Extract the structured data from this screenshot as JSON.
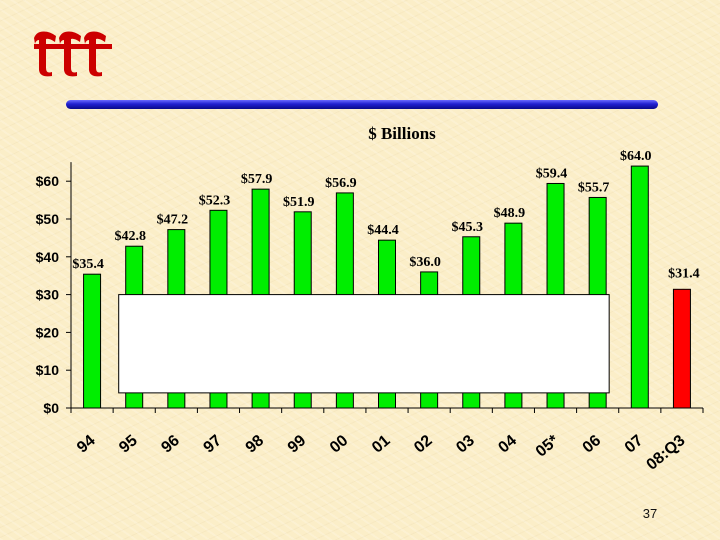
{
  "slide": {
    "page_number": "37"
  },
  "colors": {
    "bar": "#00ee00",
    "highlight_bar": "#ff0000",
    "rule": "#1a1ab8",
    "logo": "#cc0000",
    "overlay_box": "#ffffff"
  },
  "logo": {
    "icon": "triple-t-logo-icon"
  },
  "chart_data": {
    "type": "bar",
    "title": "$ Billions",
    "xlabel": "",
    "ylabel": "",
    "categories": [
      "94",
      "95",
      "96",
      "97",
      "98",
      "99",
      "00",
      "01",
      "02",
      "03",
      "04",
      "05*",
      "06",
      "07",
      "08:Q3"
    ],
    "values": [
      35.4,
      42.8,
      47.2,
      52.3,
      57.9,
      51.9,
      56.9,
      44.4,
      36.0,
      45.3,
      48.9,
      59.4,
      55.7,
      64.0,
      31.4
    ],
    "value_labels": [
      "$35.4",
      "$42.8",
      "$47.2",
      "$52.3",
      "$57.9",
      "$51.9",
      "$56.9",
      "$44.4",
      "$36.0",
      "$45.3",
      "$48.9",
      "$59.4",
      "$55.7",
      "$64.0",
      "$31.4"
    ],
    "highlight_index": 14,
    "ylim": [
      0,
      64
    ],
    "yticks": [
      0,
      10,
      20,
      30,
      40,
      50,
      60
    ],
    "ytick_labels": [
      "$0",
      "$10",
      "$20",
      "$30",
      "$40",
      "$50",
      "$60"
    ],
    "grid": false,
    "legend": "none",
    "overlay": {
      "x_from_category": "95",
      "x_to_category": "06",
      "y_range": [
        4,
        30
      ]
    }
  }
}
